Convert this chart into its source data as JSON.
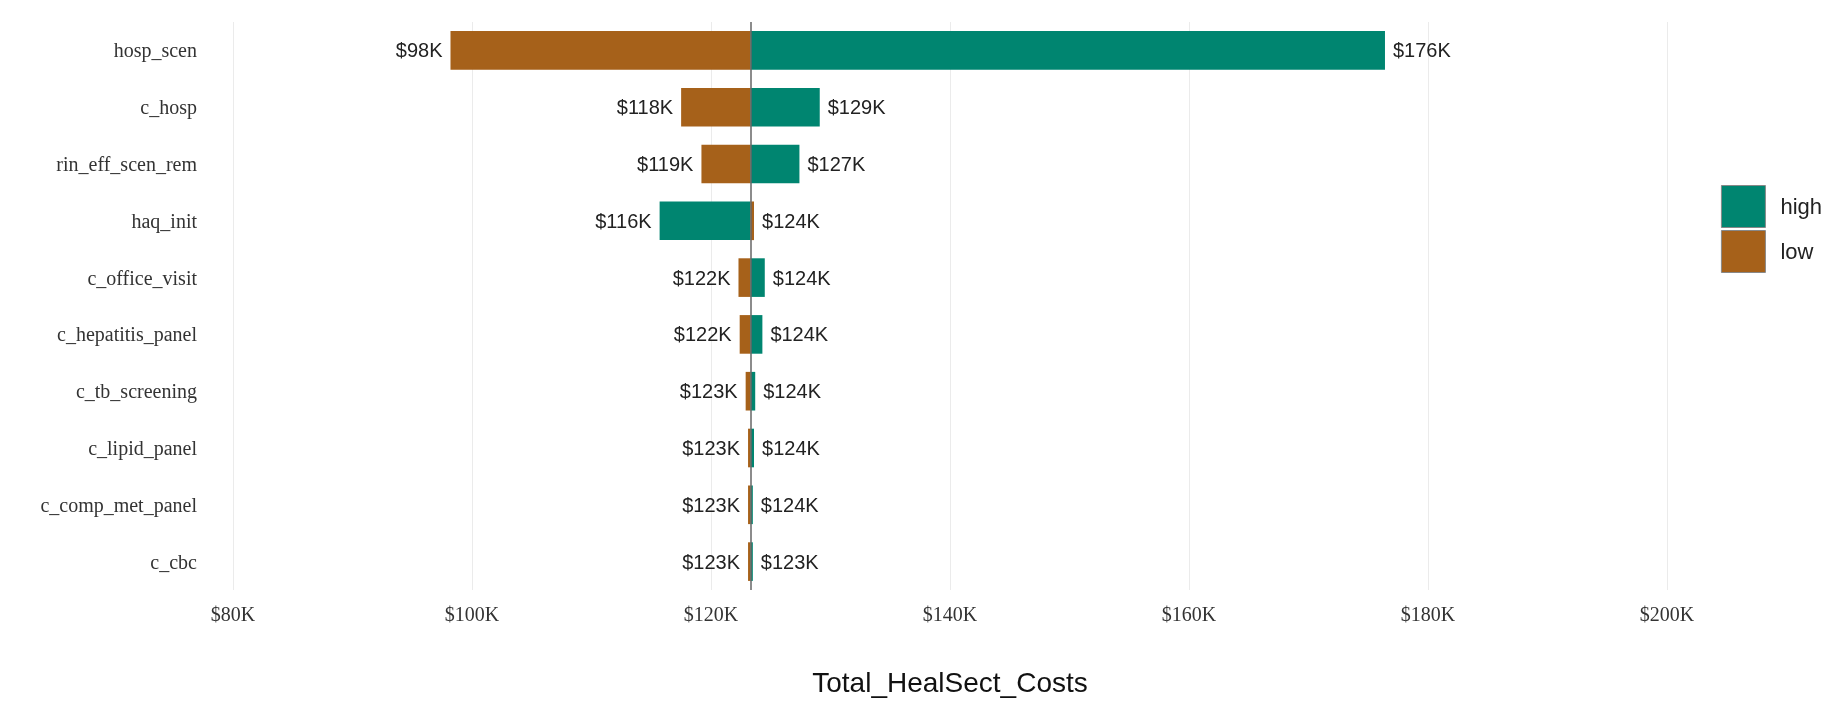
{
  "chart_data": {
    "type": "bar",
    "orientation": "horizontal",
    "xlabel": "Total_HealSect_Costs",
    "categories": [
      "hosp_scen",
      "c_hosp",
      "rin_eff_scen_rem",
      "haq_init",
      "c_office_visit",
      "c_hepatitis_panel",
      "c_tb_screening",
      "c_lipid_panel",
      "c_comp_met_panel",
      "c_cbc"
    ],
    "series": [
      {
        "name": "high",
        "color": "#008570",
        "base": [
          123.3,
          123.3,
          123.3,
          123.3,
          123.3,
          123.3,
          123.3,
          123.3,
          123.3,
          123.3
        ],
        "values": [
          53.1,
          5.8,
          4.1,
          -7.6,
          1.2,
          1.0,
          0.4,
          0.3,
          0.2,
          0.2
        ],
        "value_labels": [
          "$176K",
          "$129K",
          "$127K",
          "$116K",
          "$124K",
          "$124K",
          "$124K",
          "$124K",
          "$124K",
          "$123K"
        ]
      },
      {
        "name": "low",
        "color": "#a6611a",
        "base": [
          123.3,
          123.3,
          123.3,
          123.3,
          123.3,
          123.3,
          123.3,
          123.3,
          123.3,
          123.3
        ],
        "values": [
          -25.1,
          -5.8,
          -4.1,
          0.3,
          -1.0,
          -0.9,
          -0.4,
          -0.2,
          -0.2,
          -0.2
        ],
        "value_labels": [
          "$98K",
          "$118K",
          "$119K",
          "$124K",
          "$122K",
          "$122K",
          "$123K",
          "$123K",
          "$123K",
          "$123K"
        ]
      }
    ],
    "xlim": [
      80,
      200
    ],
    "xticks": [
      {
        "value": 80,
        "label": "$80K"
      },
      {
        "value": 100,
        "label": "$100K"
      },
      {
        "value": 120,
        "label": "$120K"
      },
      {
        "value": 140,
        "label": "$140K"
      },
      {
        "value": 160,
        "label": "$160K"
      },
      {
        "value": 180,
        "label": "$180K"
      },
      {
        "value": 200,
        "label": "$200K"
      }
    ],
    "ref_lines": [
      {
        "axis": "x",
        "value": 123.3,
        "color": "#666666"
      }
    ],
    "grid": "x",
    "legend": "right"
  }
}
